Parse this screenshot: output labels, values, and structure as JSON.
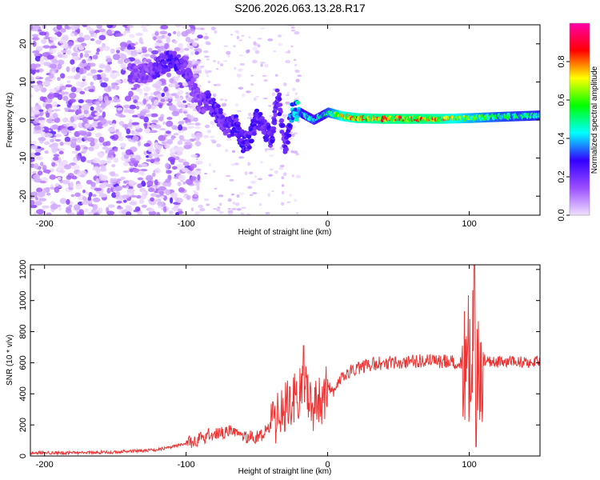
{
  "page": {
    "title": "S206.2026.063.13.28.R17"
  },
  "chart_data": [
    {
      "type": "heatmap",
      "xlabel": "Height of straight line (km)",
      "ylabel": "Frequency (Hz)",
      "xlim": [
        -210,
        150
      ],
      "ylim": [
        -25,
        25
      ],
      "xticks": [
        -200,
        -100,
        0,
        100
      ],
      "yticks": [
        -20,
        -10,
        0,
        10,
        20
      ],
      "grid": false,
      "colorbar": {
        "label": "Normalized spectral amplitude",
        "range": [
          0,
          1
        ],
        "ticks": [
          0,
          0.2,
          0.4,
          0.6,
          0.8
        ],
        "colors": [
          "#f0e0ff",
          "#9b4dff",
          "#3300ff",
          "#00ffff",
          "#00ff00",
          "#ffff00",
          "#ff0000",
          "#ff00aa"
        ]
      },
      "ridge": {
        "x": [
          -130,
          -120,
          -110,
          -100,
          -95,
          -90,
          -85,
          -80,
          -75,
          -70,
          -65,
          -60,
          -55,
          -50,
          -45,
          -40,
          -35,
          -30,
          -25,
          -20,
          -15,
          -10,
          -5,
          0,
          10,
          20,
          40,
          60,
          80,
          100,
          120,
          150
        ],
        "frequency": [
          12,
          14,
          16,
          13,
          8,
          4,
          5,
          3,
          0,
          -2,
          -1,
          -6,
          -5,
          1,
          -2,
          -5,
          6,
          -8,
          3,
          2,
          1,
          0,
          1,
          2,
          1,
          0.5,
          0.3,
          0.3,
          0.3,
          0.5,
          0.8,
          1.2
        ],
        "amplitude": [
          0.2,
          0.25,
          0.3,
          0.25,
          0.2,
          0.2,
          0.25,
          0.3,
          0.25,
          0.25,
          0.3,
          0.3,
          0.3,
          0.3,
          0.25,
          0.3,
          0.3,
          0.25,
          0.45,
          0.5,
          0.5,
          0.45,
          0.5,
          0.6,
          0.8,
          0.85,
          0.9,
          0.9,
          0.85,
          0.7,
          0.6,
          0.55
        ]
      }
    },
    {
      "type": "line",
      "xlabel": "Height of straight line (km)",
      "ylabel": "SNR (10 * v/v)",
      "xlim": [
        -210,
        150
      ],
      "ylim": [
        0,
        1230
      ],
      "xticks": [
        -200,
        -100,
        0,
        100
      ],
      "yticks": [
        0,
        200,
        400,
        600,
        800,
        1000,
        1200
      ],
      "grid": false,
      "color": "#ee3333",
      "series": [
        {
          "x": [
            -210,
            -180,
            -150,
            -120,
            -100,
            -90,
            -80,
            -70,
            -60,
            -50,
            -40,
            -35,
            -30,
            -25,
            -20,
            -17,
            -15,
            -10,
            -5,
            0,
            5,
            10,
            20,
            30,
            40,
            60,
            80,
            95,
            100,
            103,
            105,
            107,
            110,
            120,
            150
          ],
          "y": [
            20,
            20,
            25,
            40,
            80,
            110,
            150,
            160,
            120,
            120,
            180,
            250,
            320,
            380,
            400,
            560,
            380,
            300,
            360,
            440,
            420,
            500,
            560,
            590,
            600,
            610,
            610,
            600,
            620,
            700,
            620,
            580,
            620,
            600,
            610
          ]
        }
      ]
    }
  ]
}
